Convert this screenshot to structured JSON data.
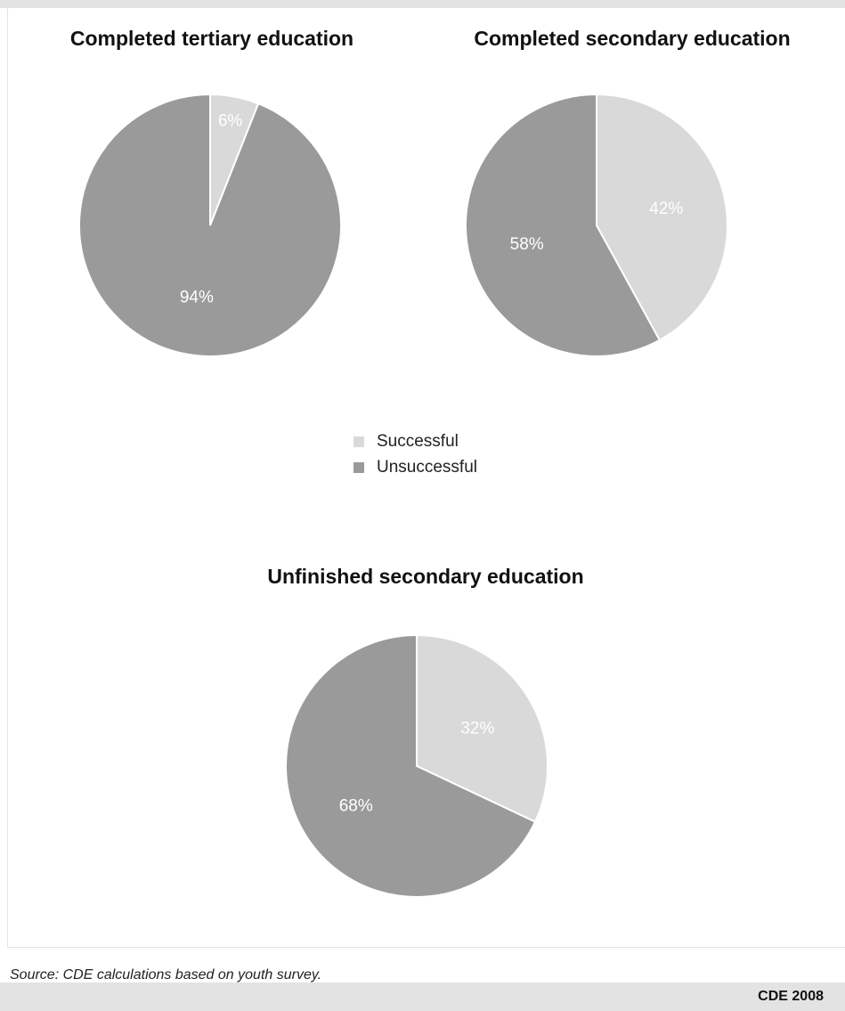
{
  "colors": {
    "successful": "#d9d9d9",
    "unsuccessful": "#9a9a9a"
  },
  "legend": [
    {
      "label": "Successful",
      "color": "#d9d9d9"
    },
    {
      "label": "Unsuccessful",
      "color": "#9a9a9a"
    }
  ],
  "source": "Source: CDE calculations based on youth survey.",
  "credit": "CDE 2008",
  "chart_data": [
    {
      "type": "pie",
      "title": "Completed tertiary education",
      "categories": [
        "Successful",
        "Unsuccessful"
      ],
      "values": [
        6,
        94
      ],
      "labels": [
        "6%",
        "94%"
      ]
    },
    {
      "type": "pie",
      "title": "Completed secondary education",
      "categories": [
        "Successful",
        "Unsuccessful"
      ],
      "values": [
        42,
        58
      ],
      "labels": [
        "42%",
        "58%"
      ]
    },
    {
      "type": "pie",
      "title": "Unfinished secondary education",
      "categories": [
        "Successful",
        "Unsuccessful"
      ],
      "values": [
        32,
        68
      ],
      "labels": [
        "32%",
        "68%"
      ]
    }
  ]
}
